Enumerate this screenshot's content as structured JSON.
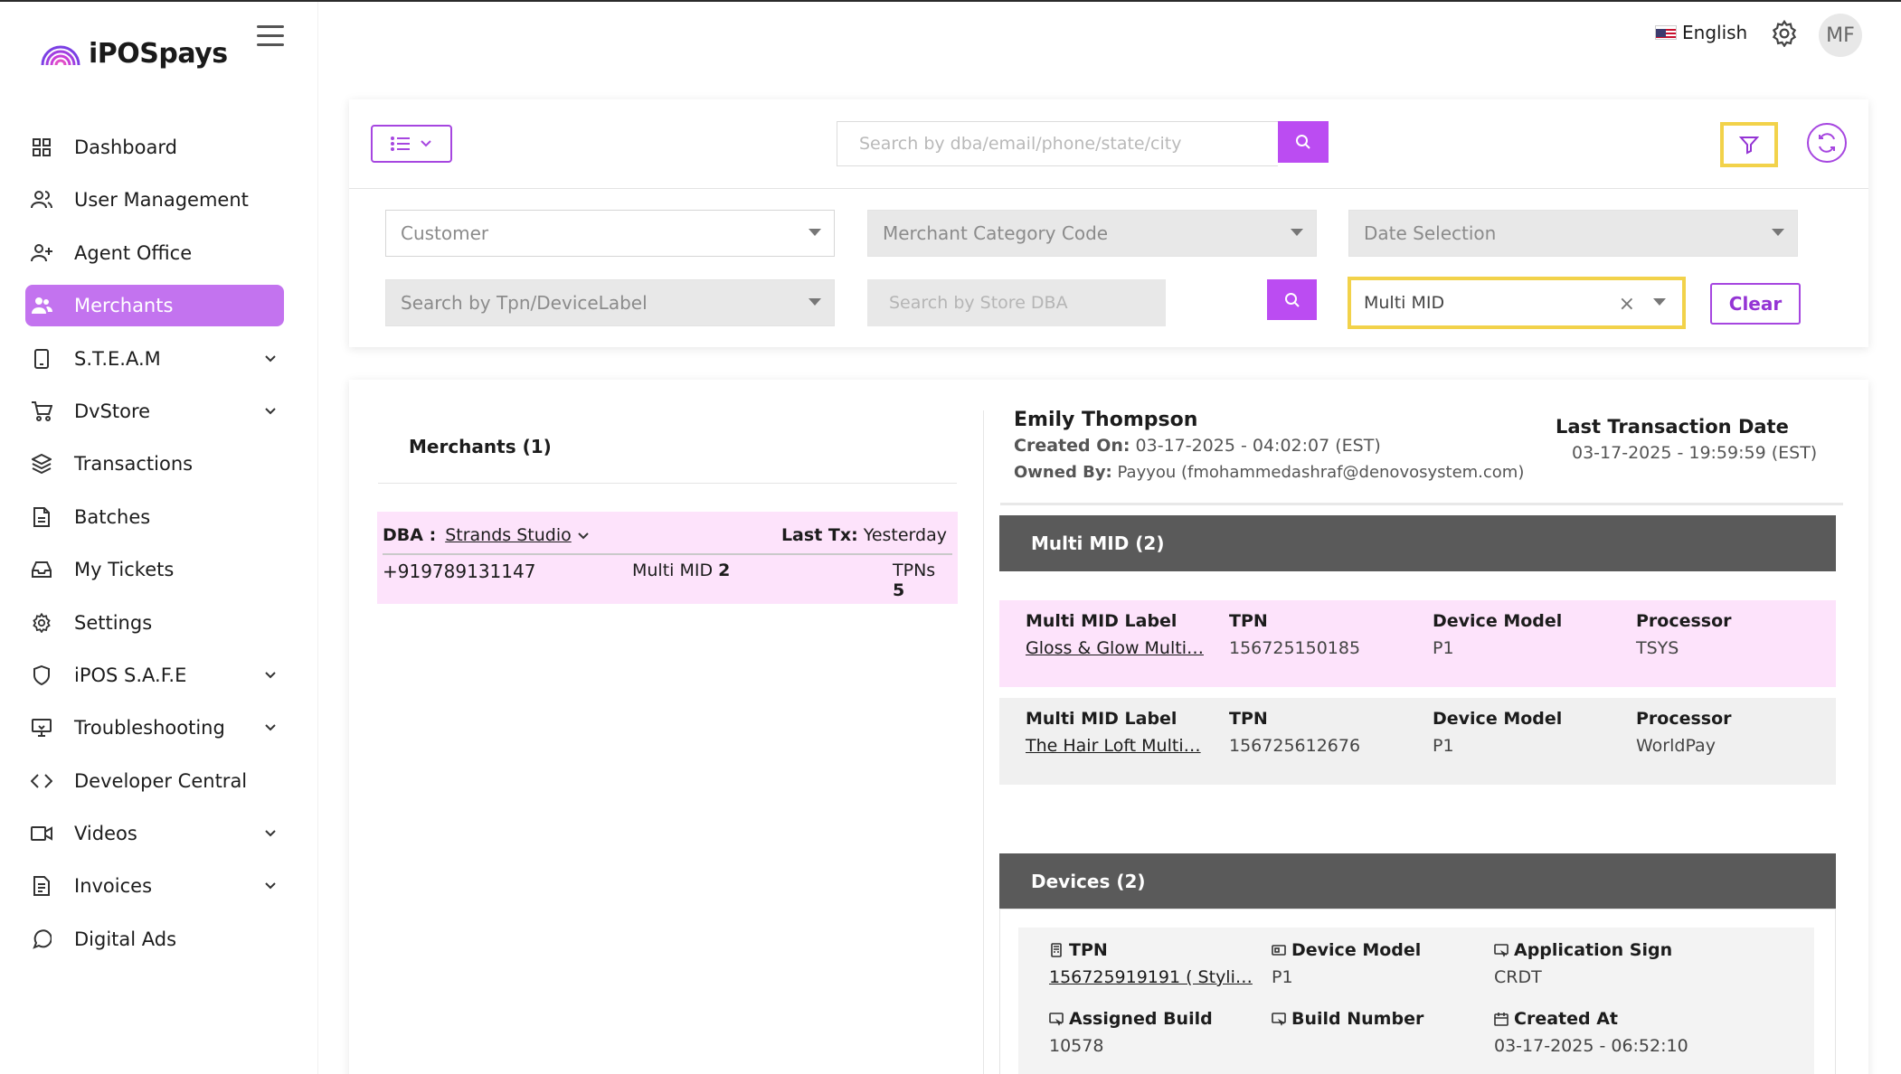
{
  "brand": {
    "name": "iPOSpays"
  },
  "header": {
    "language": "English",
    "avatar_initials": "MF"
  },
  "sidebar": {
    "items": [
      {
        "label": "Dashboard",
        "icon": "grid-icon",
        "expandable": false,
        "active": false
      },
      {
        "label": "User Management",
        "icon": "users-icon",
        "expandable": false,
        "active": false
      },
      {
        "label": "Agent Office",
        "icon": "user-plus-icon",
        "expandable": false,
        "active": false
      },
      {
        "label": "Merchants",
        "icon": "merchants-icon",
        "expandable": false,
        "active": true
      },
      {
        "label": "S.T.E.A.M",
        "icon": "tablet-icon",
        "expandable": true,
        "active": false
      },
      {
        "label": "DvStore",
        "icon": "cart-icon",
        "expandable": true,
        "active": false
      },
      {
        "label": "Transactions",
        "icon": "layers-icon",
        "expandable": false,
        "active": false
      },
      {
        "label": "Batches",
        "icon": "file-icon",
        "expandable": false,
        "active": false
      },
      {
        "label": "My Tickets",
        "icon": "inbox-icon",
        "expandable": false,
        "active": false
      },
      {
        "label": "Settings",
        "icon": "gear-icon",
        "expandable": false,
        "active": false
      },
      {
        "label": "iPOS S.A.F.E",
        "icon": "shield-icon",
        "expandable": true,
        "active": false
      },
      {
        "label": "Troubleshooting",
        "icon": "monitor-icon",
        "expandable": true,
        "active": false
      },
      {
        "label": "Developer Central",
        "icon": "code-icon",
        "expandable": false,
        "active": false
      },
      {
        "label": "Videos",
        "icon": "video-icon",
        "expandable": true,
        "active": false
      },
      {
        "label": "Invoices",
        "icon": "invoice-icon",
        "expandable": true,
        "active": false
      },
      {
        "label": "Digital Ads",
        "icon": "chat-icon",
        "expandable": false,
        "active": false
      }
    ]
  },
  "filters": {
    "search_placeholder": "Search by dba/email/phone/state/city",
    "customer_placeholder": "Customer",
    "mcc_placeholder": "Merchant Category Code",
    "date_placeholder": "Date Selection",
    "tpn_placeholder": "Search by Tpn/DeviceLabel",
    "store_placeholder": "Search by Store DBA",
    "multimid_value": "Multi MID",
    "clear_label": "Clear"
  },
  "merchants": {
    "title": "Merchants (1)",
    "row": {
      "dba_label": "DBA :",
      "dba_value": "Strands Studio",
      "last_tx_label": "Last Tx:",
      "last_tx_value": "Yesterday",
      "phone": "+919789131147",
      "multi_mid_label": "Multi MID",
      "multi_mid_count": "2",
      "tpns_label": "TPNs",
      "tpns_count": "5"
    }
  },
  "detail": {
    "owner_name": "Emily Thompson",
    "created_on_label": "Created On:",
    "created_on_value": "03-17-2025 - 04:02:07 (EST)",
    "owned_by_label": "Owned By:",
    "owned_by_value": "Payyou (fmohammedashraf@denovosystem.com)",
    "last_tx_label": "Last Transaction Date",
    "last_tx_value": "03-17-2025 - 19:59:59 (EST)",
    "multimid_section": "Multi MID (2)",
    "mid_headers": {
      "label": "Multi MID Label",
      "tpn": "TPN",
      "device_model": "Device Model",
      "processor": "Processor"
    },
    "mids": [
      {
        "label": "Gloss & Glow Multi…",
        "tpn": "156725150185",
        "device_model": "P1",
        "processor": "TSYS"
      },
      {
        "label": "The Hair Loft Multi…",
        "tpn": "156725612676",
        "device_model": "P1",
        "processor": "WorldPay"
      }
    ],
    "devices_section": "Devices (2)",
    "device": {
      "tpn_label": "TPN",
      "tpn_value": "156725919191 ( Styli…",
      "model_label": "Device Model",
      "model_value": "P1",
      "app_sign_label": "Application Sign",
      "app_sign_value": "CRDT",
      "assigned_build_label": "Assigned Build",
      "assigned_build_value": "10578",
      "build_number_label": "Build Number",
      "created_at_label": "Created At",
      "created_at_value": "03-17-2025 - 06:52:10"
    }
  },
  "colors": {
    "accent": "#bb4cf2",
    "active_nav": "#c373ef",
    "highlight": "#f2d24a",
    "row_pink": "#fde3fb",
    "section_bar": "#5a5a5a"
  }
}
